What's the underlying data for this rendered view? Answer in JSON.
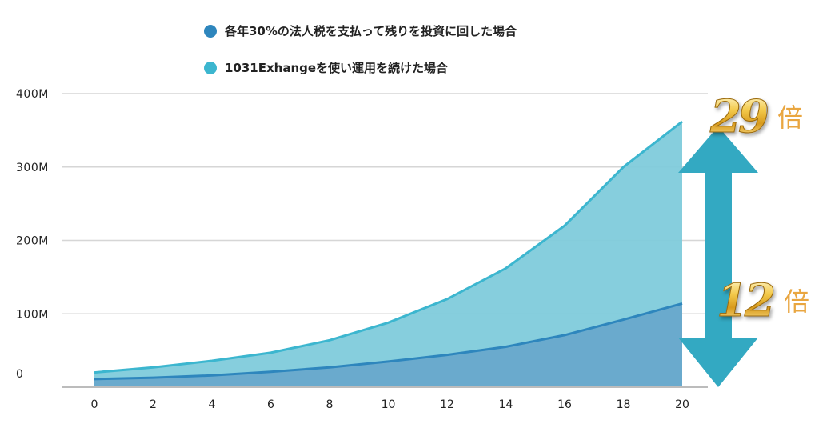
{
  "legend": [
    {
      "label": "各年30%の法人税を支払って残りを投資に回した場合",
      "color": "#2e86bd"
    },
    {
      "label": "1031Exhangeを使い運用を続けた場合",
      "color": "#3cb6cf"
    }
  ],
  "annotations": {
    "ratio_29": {
      "number": "29",
      "suffix": "倍"
    },
    "ratio_12": {
      "number": "12",
      "suffix": "倍"
    },
    "arrow_color": "#33a9c2"
  },
  "chart_data": {
    "type": "area",
    "x": [
      0,
      2,
      4,
      6,
      8,
      10,
      12,
      14,
      16,
      18,
      20
    ],
    "x_ticks": [
      "0",
      "2",
      "4",
      "6",
      "8",
      "10",
      "12",
      "14",
      "16",
      "18",
      "20"
    ],
    "y_ticks": [
      "0",
      "100M",
      "200M",
      "300M",
      "400M"
    ],
    "y_tick_values": [
      0,
      100,
      200,
      300,
      400
    ],
    "ylim": [
      0,
      400
    ],
    "grid": true,
    "legend_position": "top",
    "series": [
      {
        "name": "1031Exhangeを使い運用を続けた場合",
        "color": "#7fcbdb",
        "line_color": "#3cb6cf",
        "values": [
          20,
          27,
          36,
          47,
          64,
          88,
          120,
          162,
          220,
          300,
          362
        ]
      },
      {
        "name": "各年30%の法人税を支払って残りを投資に回した場合",
        "color": "#6aaacd",
        "line_color": "#2e86bd",
        "values": [
          11,
          13,
          16,
          21,
          27,
          35,
          44,
          55,
          71,
          92,
          114
        ]
      }
    ]
  }
}
